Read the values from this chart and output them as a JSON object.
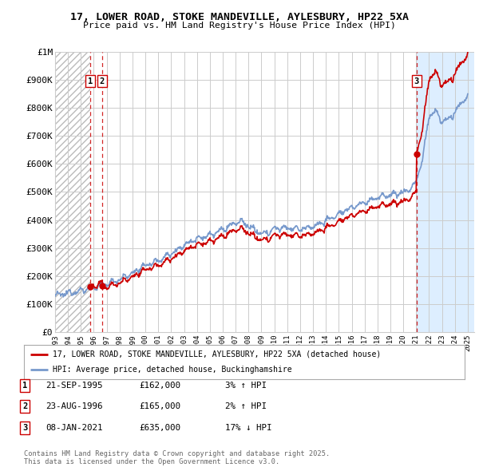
{
  "title": "17, LOWER ROAD, STOKE MANDEVILLE, AYLESBURY, HP22 5XA",
  "subtitle": "Price paid vs. HM Land Registry's House Price Index (HPI)",
  "ylim": [
    0,
    1000000
  ],
  "xlim_start": 1993.0,
  "xlim_end": 2025.5,
  "yticks": [
    0,
    100000,
    200000,
    300000,
    400000,
    500000,
    600000,
    700000,
    800000,
    900000,
    1000000
  ],
  "ytick_labels": [
    "£0",
    "£100K",
    "£200K",
    "£300K",
    "£400K",
    "£500K",
    "£600K",
    "£700K",
    "£800K",
    "£900K",
    "£1M"
  ],
  "xtick_years": [
    1993,
    1994,
    1995,
    1996,
    1997,
    1998,
    1999,
    2000,
    2001,
    2002,
    2003,
    2004,
    2005,
    2006,
    2007,
    2008,
    2009,
    2010,
    2011,
    2012,
    2013,
    2014,
    2015,
    2016,
    2017,
    2018,
    2019,
    2020,
    2021,
    2022,
    2023,
    2024,
    2025
  ],
  "property_color": "#cc0000",
  "hpi_color": "#7799cc",
  "hpi_fill_color": "#ddeeff",
  "transactions": [
    {
      "num": 1,
      "date": "21-SEP-1995",
      "year": 1995.72,
      "price": 162000,
      "hpi_pct": "3% ↑ HPI"
    },
    {
      "num": 2,
      "date": "23-AUG-1996",
      "year": 1996.65,
      "price": 165000,
      "hpi_pct": "2% ↑ HPI"
    },
    {
      "num": 3,
      "date": "08-JAN-2021",
      "year": 2021.03,
      "price": 635000,
      "hpi_pct": "17% ↓ HPI"
    }
  ],
  "legend_property": "17, LOWER ROAD, STOKE MANDEVILLE, AYLESBURY, HP22 5XA (detached house)",
  "legend_hpi": "HPI: Average price, detached house, Buckinghamshire",
  "footer": "Contains HM Land Registry data © Crown copyright and database right 2025.\nThis data is licensed under the Open Government Licence v3.0.",
  "background_color": "#ffffff",
  "grid_color": "#cccccc",
  "hatch_color": "#bbbbbb"
}
